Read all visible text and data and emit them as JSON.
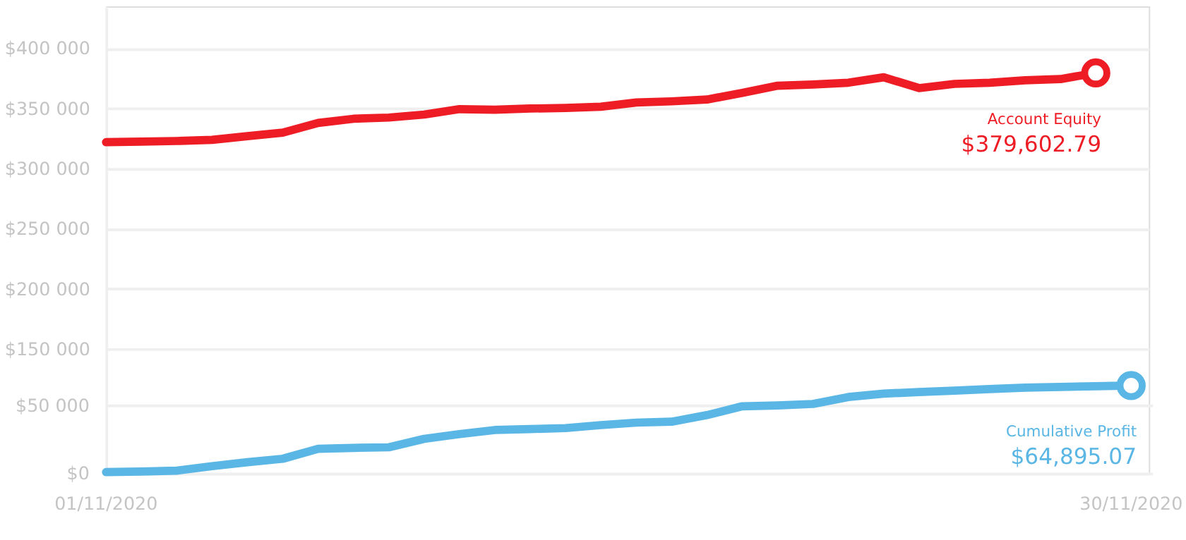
{
  "chart_data": {
    "type": "line",
    "grid": "y",
    "line_style": "solid",
    "xlim": [
      "2020-11-01",
      "2020-11-30T12:00"
    ],
    "xticks": [
      {
        "value": "2020-11-01",
        "label": "01/11/2020"
      },
      {
        "value": "2020-11-30",
        "label": "30/11/2020"
      }
    ],
    "ylim": [
      46000,
      435000
    ],
    "yticks": [
      {
        "value": 150000,
        "label": "$150 000"
      },
      {
        "value": 200000,
        "label": "$200 000"
      },
      {
        "value": 250000,
        "label": "$250 000"
      },
      {
        "value": 300000,
        "label": "$300 000"
      },
      {
        "value": 350000,
        "label": "$350 000"
      },
      {
        "value": 400000,
        "label": "$400 000"
      }
    ],
    "y2lim": [
      0,
      343000
    ],
    "y2ticks": [
      {
        "value": 0,
        "label": "$0"
      },
      {
        "value": 50000,
        "label": "$50 000"
      }
    ],
    "series": [
      {
        "name": "Account Equity",
        "color": "#ee1c25",
        "x": [
          "2020-11-01",
          "2020-11-02",
          "2020-11-03",
          "2020-11-04",
          "2020-11-05",
          "2020-11-06",
          "2020-11-07",
          "2020-11-08",
          "2020-11-09",
          "2020-11-10",
          "2020-11-11",
          "2020-11-12",
          "2020-11-13",
          "2020-11-14",
          "2020-11-15",
          "2020-11-16",
          "2020-11-17",
          "2020-11-18",
          "2020-11-19",
          "2020-11-20",
          "2020-11-21",
          "2020-11-22",
          "2020-11-23",
          "2020-11-24",
          "2020-11-25",
          "2020-11-26",
          "2020-11-27",
          "2020-11-28",
          "2020-11-29"
        ],
        "values": [
          322000,
          322500,
          323000,
          324000,
          327000,
          330000,
          338000,
          341500,
          342500,
          345000,
          349500,
          349000,
          350000,
          350500,
          351500,
          355000,
          356000,
          357500,
          363000,
          369000,
          370000,
          371500,
          376000,
          367000,
          370500,
          371500,
          373500,
          374500,
          379602.79
        ],
        "value_labels": [
          null,
          null,
          null,
          null,
          null,
          null,
          null,
          null,
          null,
          null,
          null,
          null,
          null,
          null,
          null,
          null,
          null,
          null,
          null,
          null,
          null,
          null,
          null,
          null,
          null,
          null,
          null,
          null,
          "$379,602.79"
        ]
      },
      {
        "name": "Cumulative Profit",
        "color": "#5ab6e4",
        "axis": "y2",
        "x": [
          "2020-11-01",
          "2020-11-02",
          "2020-11-03",
          "2020-11-04",
          "2020-11-05",
          "2020-11-06",
          "2020-11-07",
          "2020-11-08",
          "2020-11-09",
          "2020-11-10",
          "2020-11-11",
          "2020-11-12",
          "2020-11-13",
          "2020-11-14",
          "2020-11-15",
          "2020-11-16",
          "2020-11-17",
          "2020-11-18",
          "2020-11-19",
          "2020-11-20",
          "2020-11-21",
          "2020-11-22",
          "2020-11-23",
          "2020-11-24",
          "2020-11-25",
          "2020-11-26",
          "2020-11-27",
          "2020-11-28",
          "2020-11-29",
          "2020-11-30"
        ],
        "values": [
          1400,
          1800,
          2500,
          5800,
          8700,
          11200,
          18500,
          19200,
          19600,
          25800,
          29300,
          32300,
          33000,
          33700,
          35900,
          37700,
          38400,
          43200,
          49700,
          50300,
          51400,
          56500,
          59000,
          60100,
          61200,
          62300,
          63400,
          63900,
          64400,
          64895.07
        ],
        "value_labels": [
          null,
          null,
          null,
          null,
          null,
          null,
          null,
          null,
          null,
          null,
          null,
          null,
          null,
          null,
          null,
          null,
          null,
          null,
          null,
          null,
          null,
          null,
          null,
          null,
          null,
          null,
          null,
          null,
          null,
          "$64,895.07"
        ]
      }
    ]
  }
}
